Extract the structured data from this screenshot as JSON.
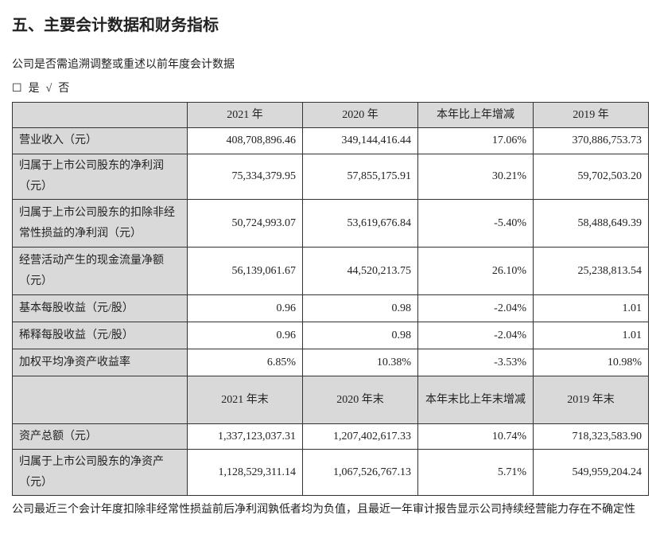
{
  "title": "五、主要会计数据和财务指标",
  "question": "公司是否需追溯调整或重述以前年度会计数据",
  "options": {
    "yes_box": "☐",
    "yes": "是",
    "no_check": "√",
    "no": "否"
  },
  "table1": {
    "headers": [
      "",
      "2021 年",
      "2020 年",
      "本年比上年增减",
      "2019 年"
    ],
    "rows": [
      [
        "营业收入（元）",
        "408,708,896.46",
        "349,144,416.44",
        "17.06%",
        "370,886,753.73"
      ],
      [
        "归属于上市公司股东的净利润（元）",
        "75,334,379.95",
        "57,855,175.91",
        "30.21%",
        "59,702,503.20"
      ],
      [
        "归属于上市公司股东的扣除非经常性损益的净利润（元）",
        "50,724,993.07",
        "53,619,676.84",
        "-5.40%",
        "58,488,649.39"
      ],
      [
        "经营活动产生的现金流量净额（元）",
        "56,139,061.67",
        "44,520,213.75",
        "26.10%",
        "25,238,813.54"
      ],
      [
        "基本每股收益（元/股）",
        "0.96",
        "0.98",
        "-2.04%",
        "1.01"
      ],
      [
        "稀释每股收益（元/股）",
        "0.96",
        "0.98",
        "-2.04%",
        "1.01"
      ],
      [
        "加权平均净资产收益率",
        "6.85%",
        "10.38%",
        "-3.53%",
        "10.98%"
      ]
    ]
  },
  "table2": {
    "headers": [
      "",
      "2021 年末",
      "2020 年末",
      "本年末比上年末增减",
      "2019 年末"
    ],
    "rows": [
      [
        "资产总额（元）",
        "1,337,123,037.31",
        "1,207,402,617.33",
        "10.74%",
        "718,323,583.90"
      ],
      [
        "归属于上市公司股东的净资产（元）",
        "1,128,529,311.14",
        "1,067,526,767.13",
        "5.71%",
        "549,959,204.24"
      ]
    ]
  },
  "footer": "公司最近三个会计年度扣除非经常性损益前后净利润孰低者均为负值，且最近一年审计报告显示公司持续经营能力存在不确定性"
}
